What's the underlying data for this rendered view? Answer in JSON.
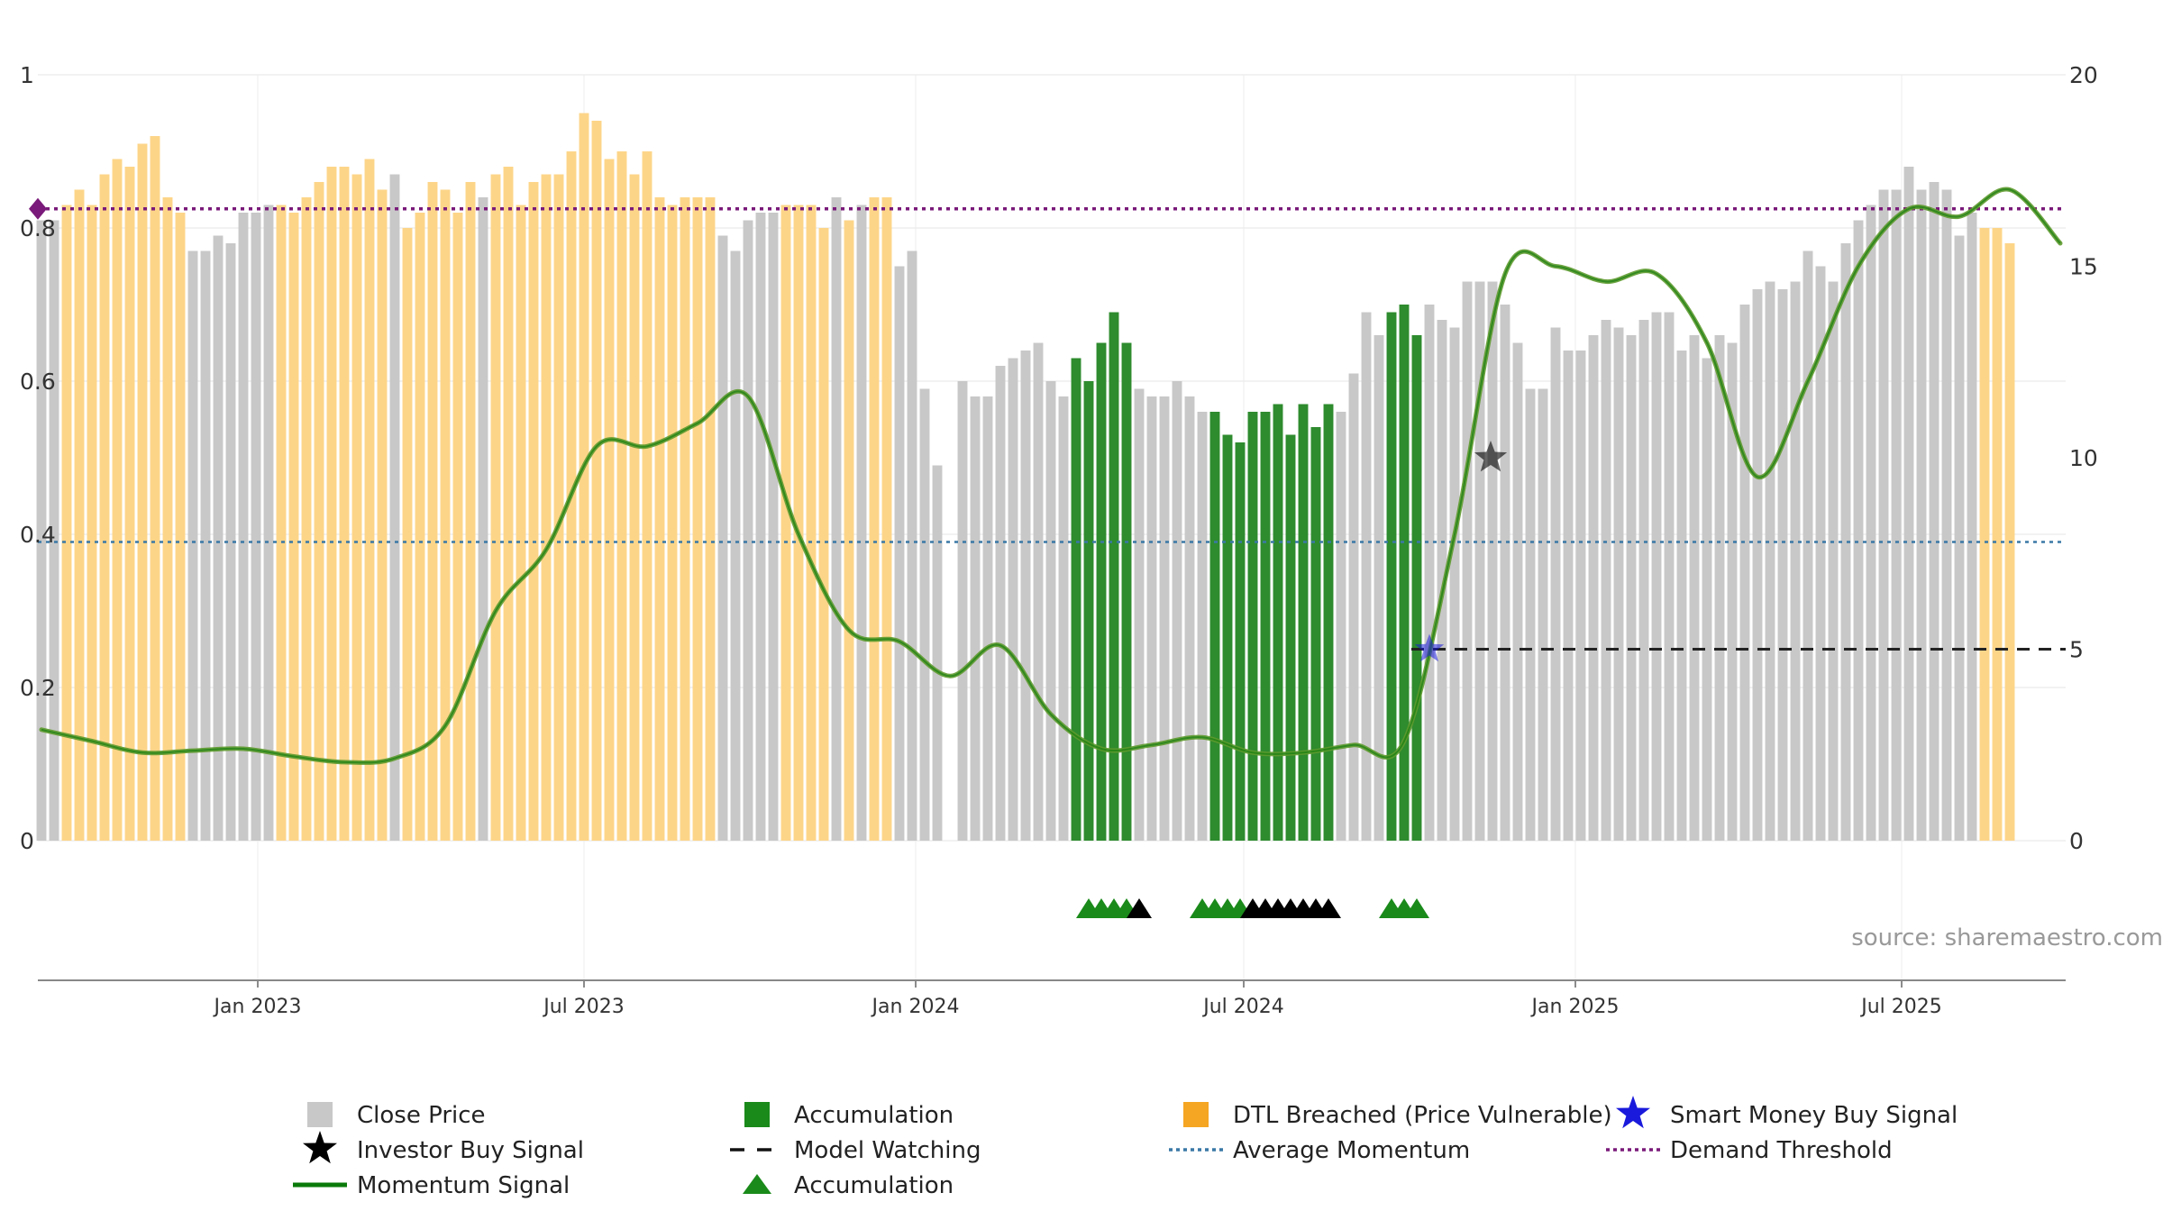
{
  "chart_data": {
    "type": "bar",
    "x_range": [
      "2022-09-01",
      "2025-09-30"
    ],
    "x_ticks": [
      {
        "date": "2023-01-01",
        "label": "Jan 2023"
      },
      {
        "date": "2023-07-01",
        "label": "Jul 2023"
      },
      {
        "date": "2024-01-01",
        "label": "Jan 2024"
      },
      {
        "date": "2024-07-01",
        "label": "Jul 2024"
      },
      {
        "date": "2025-01-01",
        "label": "Jan 2025"
      },
      {
        "date": "2025-07-01",
        "label": "Jul 2025"
      }
    ],
    "left_axis": {
      "ylim": [
        0,
        1
      ],
      "ticks": [
        "0",
        "0.2",
        "0.4",
        "0.6",
        "0.8",
        "1"
      ]
    },
    "right_axis": {
      "ylim": [
        0,
        20
      ],
      "ticks": [
        "0",
        "5",
        "10",
        "15",
        "20"
      ]
    },
    "grid": true,
    "bars": {
      "start_date": "2022-09-03",
      "step_days": 7,
      "values": [
        0.81,
        0.81,
        0.83,
        0.85,
        0.83,
        0.87,
        0.89,
        0.88,
        0.91,
        0.92,
        0.84,
        0.82,
        0.77,
        0.77,
        0.79,
        0.78,
        0.82,
        0.82,
        0.83,
        0.83,
        0.82,
        0.84,
        0.86,
        0.88,
        0.88,
        0.87,
        0.89,
        0.85,
        0.87,
        0.8,
        0.82,
        0.86,
        0.85,
        0.82,
        0.86,
        0.84,
        0.87,
        0.88,
        0.83,
        0.86,
        0.87,
        0.87,
        0.9,
        0.95,
        0.94,
        0.89,
        0.9,
        0.87,
        0.9,
        0.84,
        0.83,
        0.84,
        0.84,
        0.84,
        0.79,
        0.77,
        0.81,
        0.82,
        0.82,
        0.83,
        0.83,
        0.83,
        0.8,
        0.84,
        0.81,
        0.83,
        0.84,
        0.84,
        0.75,
        0.77,
        0.59,
        0.49,
        0.0,
        0.6,
        0.58,
        0.58,
        0.62,
        0.63,
        0.64,
        0.65,
        0.6,
        0.58,
        0.63,
        0.6,
        0.65,
        0.69,
        0.65,
        0.59,
        0.58,
        0.58,
        0.6,
        0.58,
        0.56,
        0.56,
        0.53,
        0.52,
        0.56,
        0.56,
        0.57,
        0.53,
        0.57,
        0.54,
        0.57,
        0.56,
        0.61,
        0.69,
        0.66,
        0.69,
        0.7,
        0.66,
        0.7,
        0.68,
        0.67,
        0.73,
        0.73,
        0.73,
        0.7,
        0.65,
        0.59,
        0.59,
        0.67,
        0.64,
        0.64,
        0.66,
        0.68,
        0.67,
        0.66,
        0.68,
        0.69,
        0.69,
        0.64,
        0.66,
        0.63,
        0.66,
        0.65,
        0.7,
        0.72,
        0.73,
        0.72,
        0.73,
        0.77,
        0.75,
        0.73,
        0.78,
        0.81,
        0.83,
        0.85,
        0.85,
        0.88,
        0.85,
        0.86,
        0.85,
        0.79,
        0.82,
        0.8,
        0.8,
        0.78
      ],
      "categories": "GGDDDDDDDDDDGGGGGGGDDDDDDDDDGDDDDDDGDDDDDDDDDDDDDDDDDDGGGGGDDDDGDGDDGGGGGGGGGGGGGGAAAAAGGGGGGAAAAAAAAAAGGGGAAAGGGGGGGGGGGGGGGGGGGGGGGGGGGGGGGGGGGGGGGGGGGGDDDDDDDDGGGGGG"
    },
    "momentum_signal": {
      "axis": "right",
      "points": [
        [
          "2022-09-03",
          2.9
        ],
        [
          "2022-10-01",
          2.6
        ],
        [
          "2022-10-29",
          2.3
        ],
        [
          "2022-11-26",
          2.35
        ],
        [
          "2022-12-24",
          2.4
        ],
        [
          "2023-01-21",
          2.2
        ],
        [
          "2023-02-18",
          2.05
        ],
        [
          "2023-03-18",
          2.15
        ],
        [
          "2023-04-15",
          3.0
        ],
        [
          "2023-05-13",
          6.0
        ],
        [
          "2023-06-10",
          7.6
        ],
        [
          "2023-07-08",
          10.3
        ],
        [
          "2023-08-05",
          10.3
        ],
        [
          "2023-09-02",
          10.9
        ],
        [
          "2023-09-30",
          11.6
        ],
        [
          "2023-10-28",
          8.0
        ],
        [
          "2023-11-25",
          5.5
        ],
        [
          "2023-12-23",
          5.2
        ],
        [
          "2024-01-20",
          4.3
        ],
        [
          "2024-02-17",
          5.1
        ],
        [
          "2024-03-16",
          3.3
        ],
        [
          "2024-04-13",
          2.4
        ],
        [
          "2024-05-11",
          2.5
        ],
        [
          "2024-06-08",
          2.7
        ],
        [
          "2024-07-06",
          2.3
        ],
        [
          "2024-08-03",
          2.3
        ],
        [
          "2024-08-31",
          2.5
        ],
        [
          "2024-09-28",
          2.6
        ],
        [
          "2024-10-26",
          8.0
        ],
        [
          "2024-11-23",
          14.8
        ],
        [
          "2024-12-21",
          15.0
        ],
        [
          "2025-01-18",
          14.6
        ],
        [
          "2025-02-15",
          14.8
        ],
        [
          "2025-03-15",
          13.0
        ],
        [
          "2025-04-12",
          9.5
        ],
        [
          "2025-05-10",
          12.0
        ],
        [
          "2025-06-07",
          15.0
        ],
        [
          "2025-07-05",
          16.5
        ],
        [
          "2025-08-02",
          16.3
        ],
        [
          "2025-08-30",
          17.0
        ],
        [
          "2025-09-27",
          15.6
        ]
      ]
    },
    "demand_threshold": 0.825,
    "average_momentum": 0.39,
    "model_watching": {
      "value": 0.25,
      "from": "2024-10-02",
      "to": "2025-09-30"
    },
    "investor_buy_signals": [
      {
        "date": "2024-11-15",
        "value": 0.5
      }
    ],
    "smart_money_buy_signals": [
      {
        "date": "2024-10-12",
        "value": 0.25
      }
    ],
    "accumulation_markers": {
      "green": [
        "2024-04-06",
        "2024-04-13",
        "2024-04-20",
        "2024-04-27",
        "2024-06-08",
        "2024-06-15",
        "2024-06-22",
        "2024-06-29",
        "2024-09-21",
        "2024-09-28",
        "2024-10-05"
      ],
      "black": [
        "2024-05-04",
        "2024-07-06",
        "2024-07-13",
        "2024-07-20",
        "2024-07-27",
        "2024-08-03",
        "2024-08-10",
        "2024-08-17"
      ]
    },
    "source": "source: sharemaestro.com",
    "colors": {
      "close_price": "#c8c8c8",
      "accumulation": "#2e8b2e",
      "dtl_breached": "#fdd589",
      "momentum": "#0a7a0a",
      "momentum_muted": "#5e9a2e",
      "demand_threshold": "#7a1a7a",
      "average_momentum": "#3a78a6",
      "model_watching": "#222222",
      "smart_money": "#1a1adc",
      "investor": "#000000"
    },
    "legend": [
      {
        "key": "close-price",
        "label": "Close Price",
        "swatch": "square-gray"
      },
      {
        "key": "accumulation-bar",
        "label": "Accumulation",
        "swatch": "square-green"
      },
      {
        "key": "dtl-breached",
        "label": "DTL Breached (Price Vulnerable)",
        "swatch": "square-orange"
      },
      {
        "key": "smart-money",
        "label": "Smart Money Buy Signal",
        "swatch": "star-blue"
      },
      {
        "key": "investor-buy",
        "label": "Investor Buy Signal",
        "swatch": "star-black"
      },
      {
        "key": "model-watching",
        "label": "Model Watching",
        "swatch": "dash-black"
      },
      {
        "key": "average-momentum",
        "label": "Average Momentum",
        "swatch": "dot-blue"
      },
      {
        "key": "demand-threshold",
        "label": "Demand Threshold",
        "swatch": "dot-purple"
      },
      {
        "key": "momentum-signal",
        "label": "Momentum Signal",
        "swatch": "line-green"
      },
      {
        "key": "accumulation-marker",
        "label": "Accumulation",
        "swatch": "triangle-green"
      }
    ]
  }
}
